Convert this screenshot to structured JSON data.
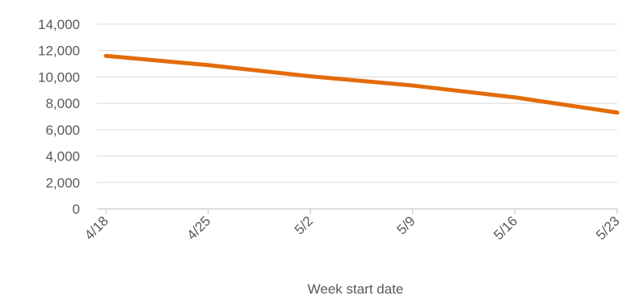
{
  "chart_data": {
    "type": "line",
    "title": "",
    "xlabel": "Week start date",
    "ylabel": "",
    "categories": [
      "4/18",
      "4/25",
      "5/2",
      "5/9",
      "5/16",
      "5/23"
    ],
    "series": [
      {
        "values": [
          11600,
          10900,
          10050,
          9350,
          8450,
          7300
        ],
        "color": "#e36c0a"
      }
    ],
    "ylim": [
      0,
      14000
    ],
    "yticks": [
      "0",
      "2,000",
      "4,000",
      "6,000",
      "8,000",
      "10,000",
      "12,000",
      "14,000"
    ],
    "ytick_values": [
      0,
      2000,
      4000,
      6000,
      8000,
      10000,
      12000,
      14000
    ],
    "grid": true,
    "legend": "none"
  }
}
